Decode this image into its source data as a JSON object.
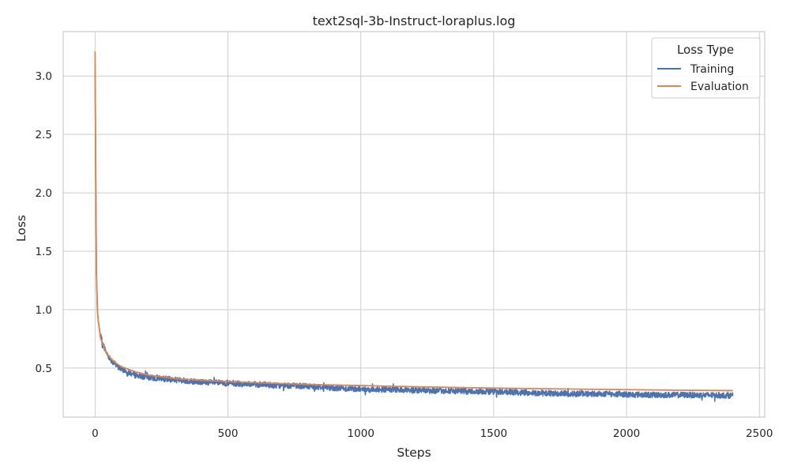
{
  "chart_data": {
    "type": "line",
    "title": "text2sql-3b-Instruct-loraplus.log",
    "xlabel": "Steps",
    "ylabel": "Loss",
    "xlim": [
      -120,
      2520
    ],
    "ylim": [
      0.08,
      3.38
    ],
    "x_ticks": [
      0,
      500,
      1000,
      1500,
      2000,
      2500
    ],
    "y_ticks": [
      0.5,
      1.0,
      1.5,
      2.0,
      2.5,
      3.0
    ],
    "x_tick_labels": [
      "0",
      "500",
      "1000",
      "1500",
      "2000",
      "2500"
    ],
    "y_tick_labels": [
      "0.5",
      "1.0",
      "1.5",
      "2.0",
      "2.5",
      "3.0"
    ],
    "grid": true,
    "legend": {
      "title": "Loss Type",
      "position": "top-right"
    },
    "series": [
      {
        "name": "Training",
        "color": "#4c72b0",
        "noise": 0.025,
        "x": [
          0,
          2,
          5,
          8,
          12,
          20,
          30,
          45,
          60,
          80,
          100,
          150,
          200,
          250,
          300,
          400,
          500,
          600,
          700,
          800,
          900,
          1000,
          1100,
          1200,
          1300,
          1400,
          1500,
          1600,
          1700,
          1800,
          1900,
          2000,
          2100,
          2200,
          2300,
          2400
        ],
        "y": [
          3.1,
          2.3,
          1.35,
          1.02,
          0.9,
          0.78,
          0.7,
          0.62,
          0.57,
          0.52,
          0.49,
          0.44,
          0.42,
          0.41,
          0.4,
          0.38,
          0.37,
          0.36,
          0.35,
          0.345,
          0.33,
          0.32,
          0.315,
          0.31,
          0.305,
          0.3,
          0.3,
          0.29,
          0.285,
          0.28,
          0.28,
          0.275,
          0.27,
          0.27,
          0.268,
          0.265
        ]
      },
      {
        "name": "Evaluation",
        "color": "#dd8452",
        "noise": 0,
        "x": [
          0,
          2,
          5,
          10,
          20,
          40,
          60,
          80,
          100,
          150,
          200,
          300,
          400,
          500,
          600,
          800,
          1000,
          1200,
          1400,
          1600,
          1800,
          2000,
          2200,
          2400
        ],
        "y": [
          3.21,
          2.4,
          1.3,
          0.95,
          0.76,
          0.64,
          0.58,
          0.54,
          0.51,
          0.47,
          0.44,
          0.41,
          0.395,
          0.385,
          0.375,
          0.36,
          0.35,
          0.34,
          0.332,
          0.325,
          0.32,
          0.315,
          0.31,
          0.307
        ]
      }
    ]
  }
}
